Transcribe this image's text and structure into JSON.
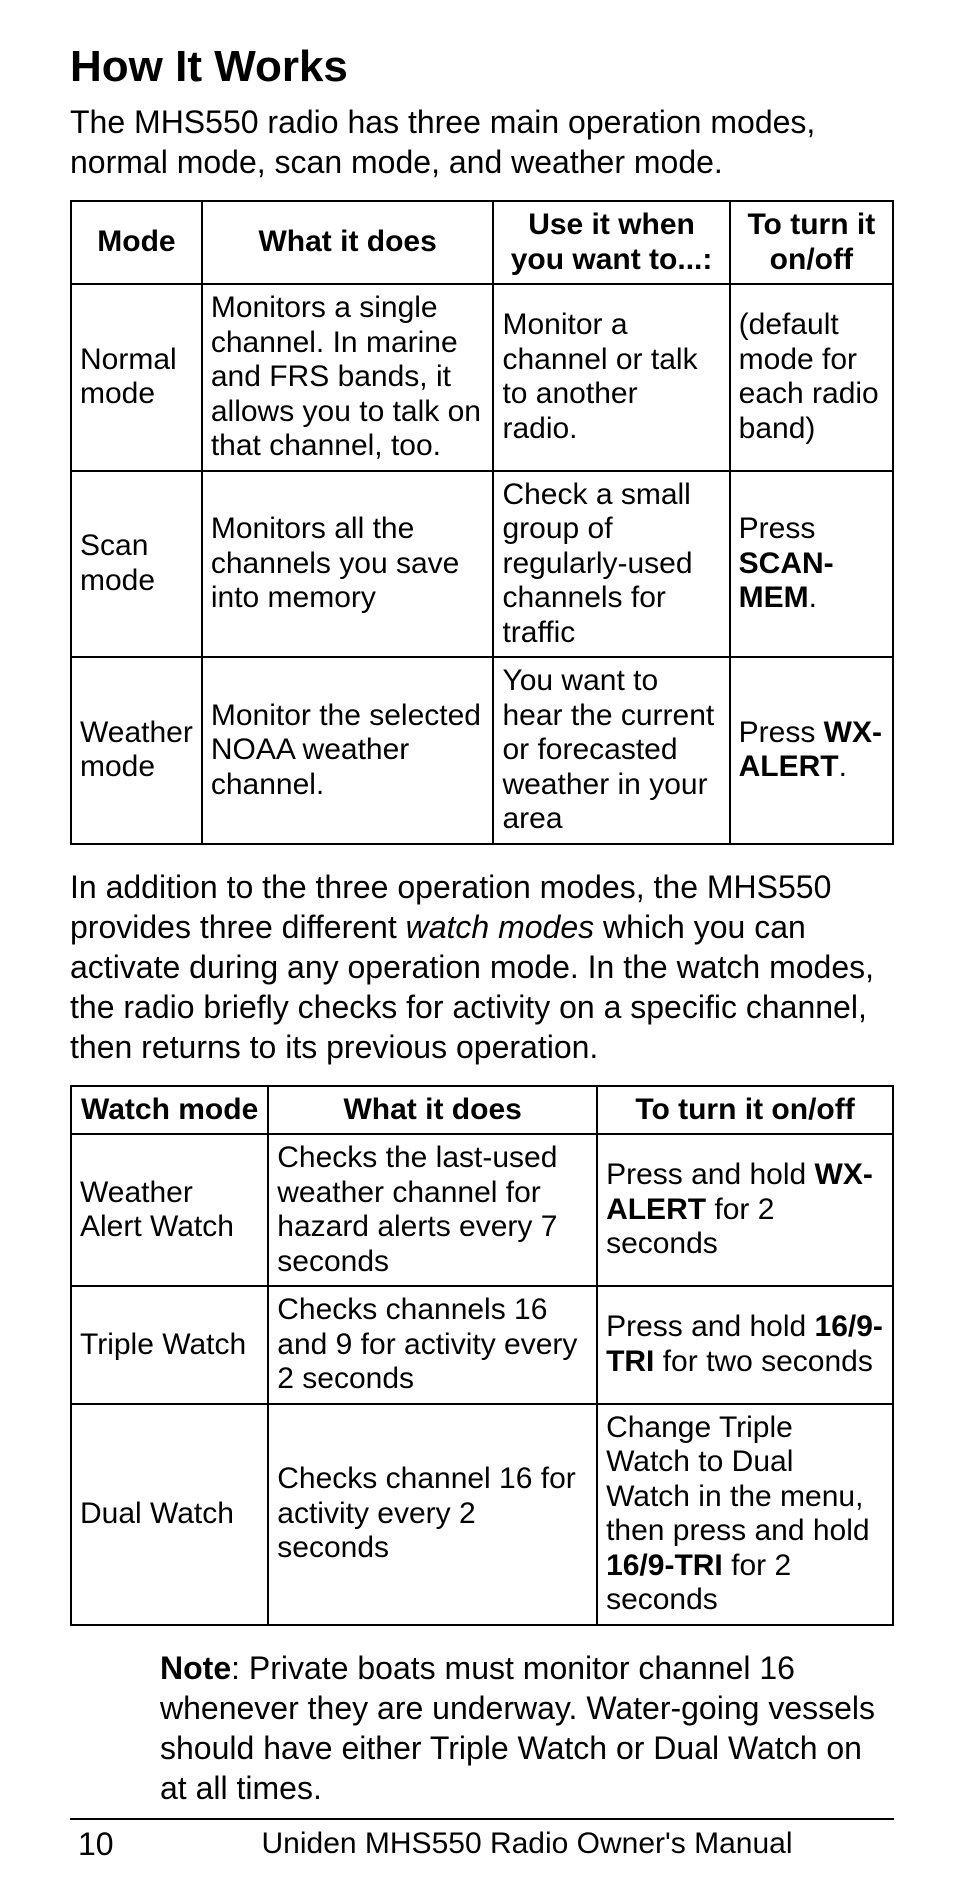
{
  "heading": "How It Works",
  "intro": "The MHS550 radio has three main operation modes, normal mode, scan mode, and weather mode.",
  "table1": {
    "headers": [
      "Mode",
      "What it does",
      "Use it when you want to...:",
      "To turn it on/off"
    ],
    "col_widths_pct": [
      15,
      36,
      29,
      20
    ],
    "rows": [
      {
        "c0": "Normal mode",
        "c1": "Monitors a single channel. In marine and FRS bands, it allows you to talk on that channel, too.",
        "c2": "Monitor a channel or talk to another radio.",
        "c3_pre": "(default mode for each radio band)",
        "c3_bold": "",
        "c3_post": ""
      },
      {
        "c0": "Scan mode",
        "c1": "Monitors all the channels you save into memory",
        "c2": "Check a small group of regularly-used channels for traffic",
        "c3_pre": "Press ",
        "c3_bold": "SCAN-MEM",
        "c3_post": "."
      },
      {
        "c0": "Weather mode",
        "c1": "Monitor the selected NOAA weather channel.",
        "c2": "You want to hear the current or forecasted weather in your area",
        "c3_pre": "Press ",
        "c3_bold": "WX-ALERT",
        "c3_post": "."
      }
    ]
  },
  "mid_para_a": "In addition to the three operation modes, the MHS550 provides three different ",
  "mid_para_em": "watch modes",
  "mid_para_b": " which you can activate during any operation mode. In the watch modes, the radio briefly checks for activity on a specific channel, then returns to its previous operation.",
  "table2": {
    "headers": [
      "Watch mode",
      "What it does",
      "To turn it on/off"
    ],
    "col_widths_pct": [
      24,
      40,
      36
    ],
    "rows": [
      {
        "c0": "Weather Alert Watch",
        "c1": "Checks the last-used weather channel for hazard alerts every 7 seconds",
        "c2_a": "Press and hold ",
        "c2_b1": "WX-ALERT",
        "c2_c": " for 2 seconds",
        "c2_b2": "",
        "c2_d": ""
      },
      {
        "c0": "Triple Watch",
        "c1": "Checks channels 16 and 9 for activity every 2 seconds",
        "c2_a": "Press and hold ",
        "c2_b1": "16/9-TRI",
        "c2_c": " for two seconds",
        "c2_b2": "",
        "c2_d": ""
      },
      {
        "c0": "Dual Watch",
        "c1": "Checks channel 16  for activity every 2 seconds",
        "c2_a": "Change Triple Watch to Dual Watch in the menu, then press and hold ",
        "c2_b1": "16/9-TRI",
        "c2_c": " for 2 seconds",
        "c2_b2": "",
        "c2_d": ""
      }
    ]
  },
  "note_bold": "Note",
  "note_rest": ": Private boats must monitor channel 16 whenever they are underway. Water-going vessels should have either Triple Watch or Dual Watch on at all times.",
  "footer_page": "10",
  "footer_text": "Uniden MHS550 Radio Owner's Manual"
}
